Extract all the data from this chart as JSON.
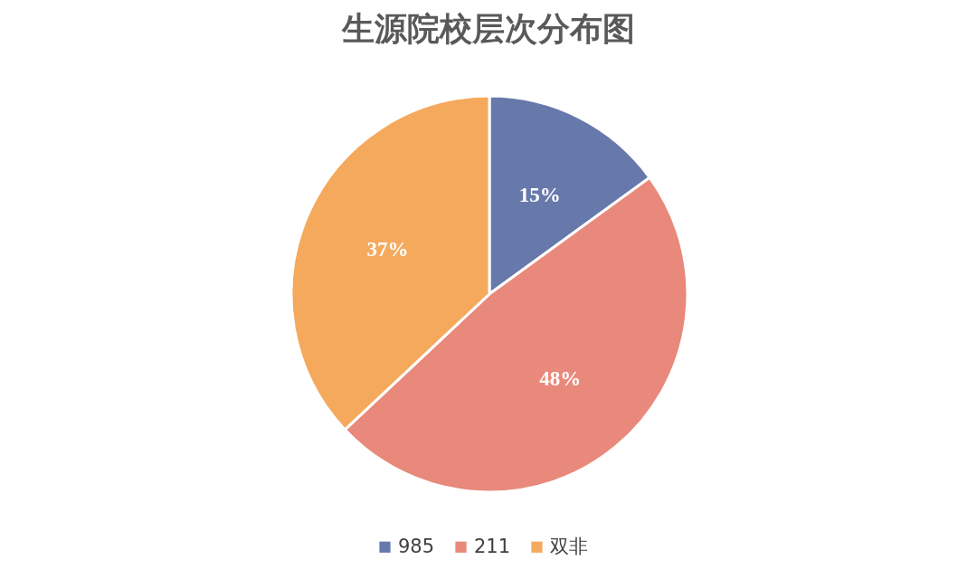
{
  "chart_data": {
    "type": "pie",
    "title": "生源院校层次分布图",
    "categories": [
      "985",
      "211",
      "双非"
    ],
    "values": [
      15,
      48,
      37
    ],
    "colors": [
      "#6779ab",
      "#e8897b",
      "#f5a95c"
    ],
    "value_labels": [
      "15%",
      "48%",
      "37%"
    ],
    "legend": "bottom"
  }
}
